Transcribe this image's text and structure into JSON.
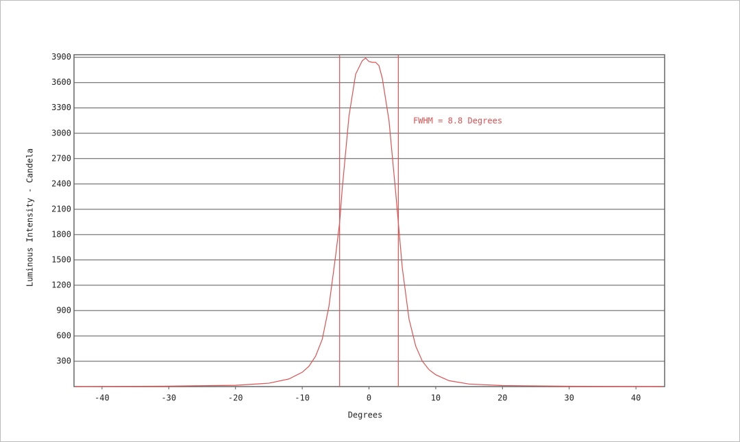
{
  "chart_data": {
    "type": "line",
    "x_label": "Degrees",
    "y_label": "Luminous Intensity - Candela",
    "annotation": "FWHM =  8.8 Degrees",
    "markers": [
      -4.4,
      4.4
    ],
    "x": [
      -44,
      -30,
      -20,
      -15,
      -12,
      -10,
      -9,
      -8,
      -7,
      -6,
      -5,
      -4.4,
      -4,
      -3,
      -2,
      -1,
      -0.5,
      0,
      0.5,
      1,
      1.5,
      2,
      3,
      4,
      4.4,
      5,
      6,
      7,
      8,
      9,
      10,
      12,
      15,
      20,
      30,
      44
    ],
    "series": [
      {
        "color": "#e05050",
        "values": [
          0,
          5,
          15,
          40,
          90,
          170,
          240,
          360,
          560,
          950,
          1550,
          1940,
          2350,
          3200,
          3700,
          3860,
          3890,
          3850,
          3840,
          3840,
          3800,
          3650,
          3150,
          2300,
          1940,
          1400,
          800,
          480,
          300,
          200,
          140,
          70,
          30,
          12,
          4,
          0
        ]
      }
    ],
    "xlim": [
      -44.2,
      44.3
    ],
    "ylim": [
      0,
      3930
    ],
    "xticks": [
      -40,
      -30,
      -20,
      -10,
      0,
      10,
      20,
      30,
      40
    ],
    "yticks": [
      300,
      600,
      900,
      1200,
      1500,
      1800,
      2100,
      2400,
      2700,
      3000,
      3300,
      3600,
      3900
    ],
    "grid": true
  }
}
